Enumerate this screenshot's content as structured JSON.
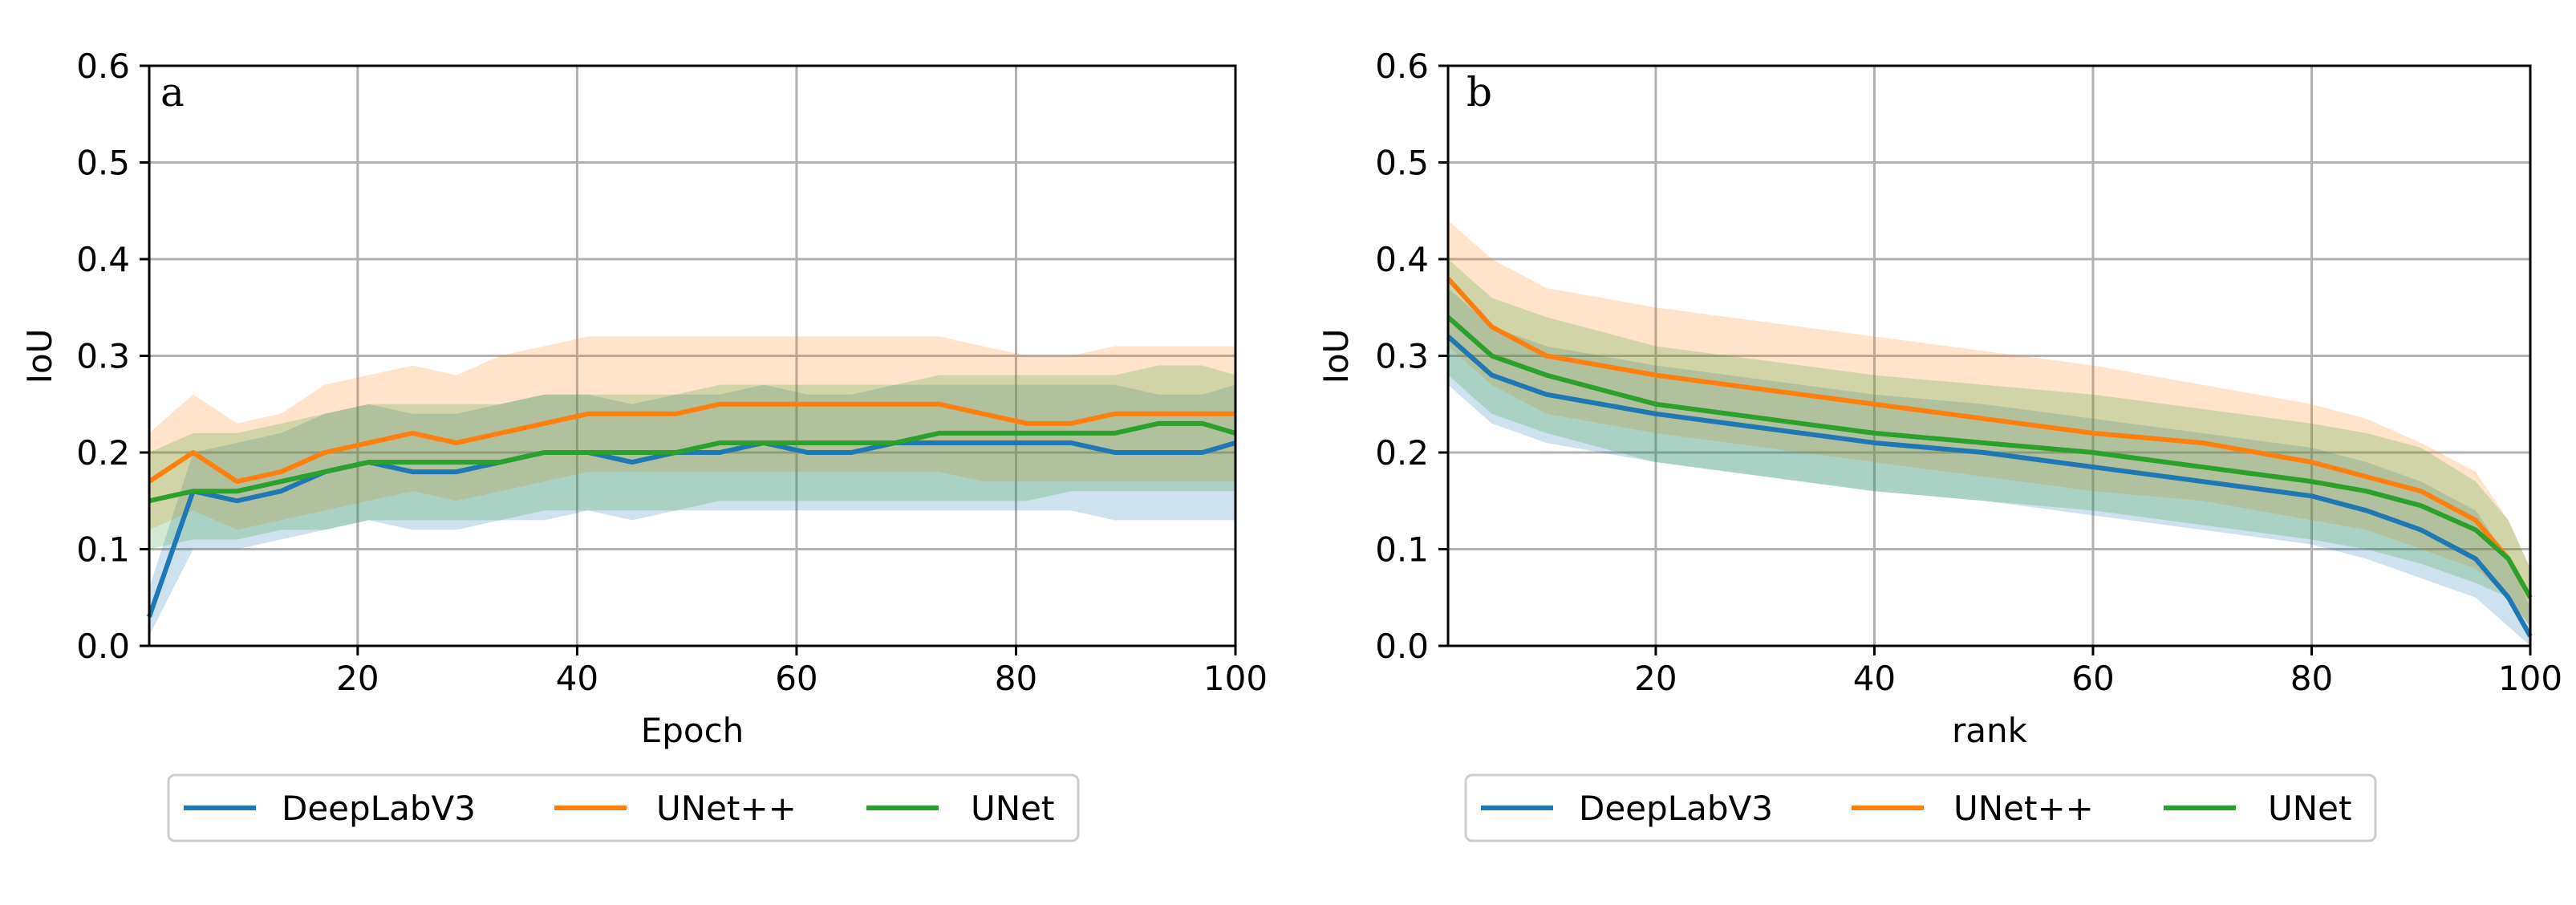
{
  "chart_data": [
    {
      "type": "line",
      "panel_label": "a",
      "xlabel": "Epoch",
      "ylabel": "IoU",
      "xlim": [
        1,
        100
      ],
      "ylim": [
        0,
        0.6
      ],
      "xticks": [
        20,
        40,
        60,
        80,
        100
      ],
      "yticks": [
        0.0,
        0.1,
        0.2,
        0.3,
        0.4,
        0.5,
        0.6
      ],
      "grid": true,
      "legend_position": "bottom",
      "bands": "shaded band around each line",
      "x": [
        1,
        5,
        9,
        13,
        17,
        21,
        25,
        29,
        33,
        37,
        41,
        45,
        49,
        53,
        57,
        61,
        65,
        69,
        73,
        77,
        81,
        85,
        89,
        93,
        97,
        100
      ],
      "series": [
        {
          "name": "DeepLabV3",
          "color": "#1f77b4",
          "values": [
            0.03,
            0.16,
            0.15,
            0.16,
            0.18,
            0.19,
            0.18,
            0.18,
            0.19,
            0.2,
            0.2,
            0.19,
            0.2,
            0.2,
            0.21,
            0.2,
            0.2,
            0.21,
            0.21,
            0.21,
            0.21,
            0.21,
            0.2,
            0.2,
            0.2,
            0.21
          ],
          "lower": [
            0.01,
            0.1,
            0.1,
            0.11,
            0.12,
            0.13,
            0.12,
            0.12,
            0.13,
            0.13,
            0.14,
            0.13,
            0.14,
            0.14,
            0.14,
            0.14,
            0.14,
            0.14,
            0.14,
            0.14,
            0.14,
            0.14,
            0.13,
            0.13,
            0.13,
            0.13
          ],
          "upper": [
            0.06,
            0.2,
            0.21,
            0.22,
            0.24,
            0.25,
            0.24,
            0.24,
            0.25,
            0.26,
            0.26,
            0.25,
            0.26,
            0.26,
            0.27,
            0.26,
            0.26,
            0.27,
            0.27,
            0.27,
            0.27,
            0.27,
            0.27,
            0.26,
            0.26,
            0.27
          ]
        },
        {
          "name": "UNet++",
          "color": "#ff7f0e",
          "values": [
            0.17,
            0.2,
            0.17,
            0.18,
            0.2,
            0.21,
            0.22,
            0.21,
            0.22,
            0.23,
            0.24,
            0.24,
            0.24,
            0.25,
            0.25,
            0.25,
            0.25,
            0.25,
            0.25,
            0.24,
            0.23,
            0.23,
            0.24,
            0.24,
            0.24,
            0.24
          ],
          "lower": [
            0.12,
            0.14,
            0.12,
            0.13,
            0.14,
            0.15,
            0.16,
            0.15,
            0.16,
            0.17,
            0.18,
            0.18,
            0.18,
            0.18,
            0.18,
            0.18,
            0.18,
            0.18,
            0.18,
            0.17,
            0.17,
            0.17,
            0.17,
            0.17,
            0.17,
            0.17
          ],
          "upper": [
            0.22,
            0.26,
            0.23,
            0.24,
            0.27,
            0.28,
            0.29,
            0.28,
            0.3,
            0.31,
            0.32,
            0.32,
            0.32,
            0.32,
            0.32,
            0.32,
            0.32,
            0.32,
            0.32,
            0.31,
            0.3,
            0.3,
            0.31,
            0.31,
            0.31,
            0.31
          ]
        },
        {
          "name": "UNet",
          "color": "#2ca02c",
          "values": [
            0.15,
            0.16,
            0.16,
            0.17,
            0.18,
            0.19,
            0.19,
            0.19,
            0.19,
            0.2,
            0.2,
            0.2,
            0.2,
            0.21,
            0.21,
            0.21,
            0.21,
            0.21,
            0.22,
            0.22,
            0.22,
            0.22,
            0.22,
            0.23,
            0.23,
            0.22
          ],
          "lower": [
            0.1,
            0.11,
            0.11,
            0.12,
            0.12,
            0.13,
            0.13,
            0.13,
            0.13,
            0.14,
            0.14,
            0.14,
            0.14,
            0.15,
            0.15,
            0.15,
            0.15,
            0.15,
            0.15,
            0.15,
            0.15,
            0.16,
            0.16,
            0.16,
            0.16,
            0.16
          ],
          "upper": [
            0.2,
            0.22,
            0.22,
            0.23,
            0.24,
            0.25,
            0.25,
            0.25,
            0.25,
            0.26,
            0.26,
            0.26,
            0.26,
            0.27,
            0.27,
            0.27,
            0.27,
            0.27,
            0.28,
            0.28,
            0.28,
            0.28,
            0.28,
            0.29,
            0.29,
            0.28
          ]
        }
      ]
    },
    {
      "type": "line",
      "panel_label": "b",
      "xlabel": "rank",
      "ylabel": "IoU",
      "xlim": [
        1,
        100
      ],
      "ylim": [
        0,
        0.6
      ],
      "xticks": [
        20,
        40,
        60,
        80,
        100
      ],
      "yticks": [
        0.0,
        0.1,
        0.2,
        0.3,
        0.4,
        0.5,
        0.6
      ],
      "grid": true,
      "legend_position": "bottom",
      "bands": "shaded band around each line",
      "x": [
        1,
        5,
        10,
        20,
        30,
        40,
        50,
        60,
        70,
        80,
        85,
        90,
        95,
        98,
        100
      ],
      "series": [
        {
          "name": "DeepLabV3",
          "color": "#1f77b4",
          "values": [
            0.32,
            0.28,
            0.26,
            0.24,
            0.225,
            0.21,
            0.2,
            0.185,
            0.17,
            0.155,
            0.14,
            0.12,
            0.09,
            0.05,
            0.01
          ],
          "lower": [
            0.27,
            0.23,
            0.21,
            0.19,
            0.175,
            0.16,
            0.15,
            0.135,
            0.12,
            0.105,
            0.09,
            0.07,
            0.05,
            0.02,
            0.0
          ],
          "upper": [
            0.37,
            0.33,
            0.31,
            0.29,
            0.275,
            0.26,
            0.25,
            0.235,
            0.22,
            0.205,
            0.19,
            0.17,
            0.14,
            0.09,
            0.04
          ]
        },
        {
          "name": "UNet++",
          "color": "#ff7f0e",
          "values": [
            0.38,
            0.33,
            0.3,
            0.28,
            0.265,
            0.25,
            0.235,
            0.22,
            0.21,
            0.19,
            0.175,
            0.16,
            0.13,
            0.09,
            0.05
          ],
          "lower": [
            0.31,
            0.27,
            0.24,
            0.22,
            0.205,
            0.19,
            0.175,
            0.16,
            0.15,
            0.13,
            0.12,
            0.1,
            0.08,
            0.05,
            0.02
          ],
          "upper": [
            0.44,
            0.4,
            0.37,
            0.35,
            0.335,
            0.32,
            0.305,
            0.29,
            0.27,
            0.25,
            0.235,
            0.21,
            0.18,
            0.13,
            0.08
          ]
        },
        {
          "name": "UNet",
          "color": "#2ca02c",
          "values": [
            0.34,
            0.3,
            0.28,
            0.25,
            0.235,
            0.22,
            0.21,
            0.2,
            0.185,
            0.17,
            0.16,
            0.145,
            0.12,
            0.09,
            0.05
          ],
          "lower": [
            0.28,
            0.24,
            0.22,
            0.19,
            0.175,
            0.16,
            0.15,
            0.14,
            0.125,
            0.11,
            0.1,
            0.085,
            0.065,
            0.05,
            0.02
          ],
          "upper": [
            0.4,
            0.36,
            0.34,
            0.31,
            0.295,
            0.28,
            0.27,
            0.26,
            0.245,
            0.23,
            0.22,
            0.205,
            0.17,
            0.13,
            0.08
          ]
        }
      ]
    }
  ]
}
